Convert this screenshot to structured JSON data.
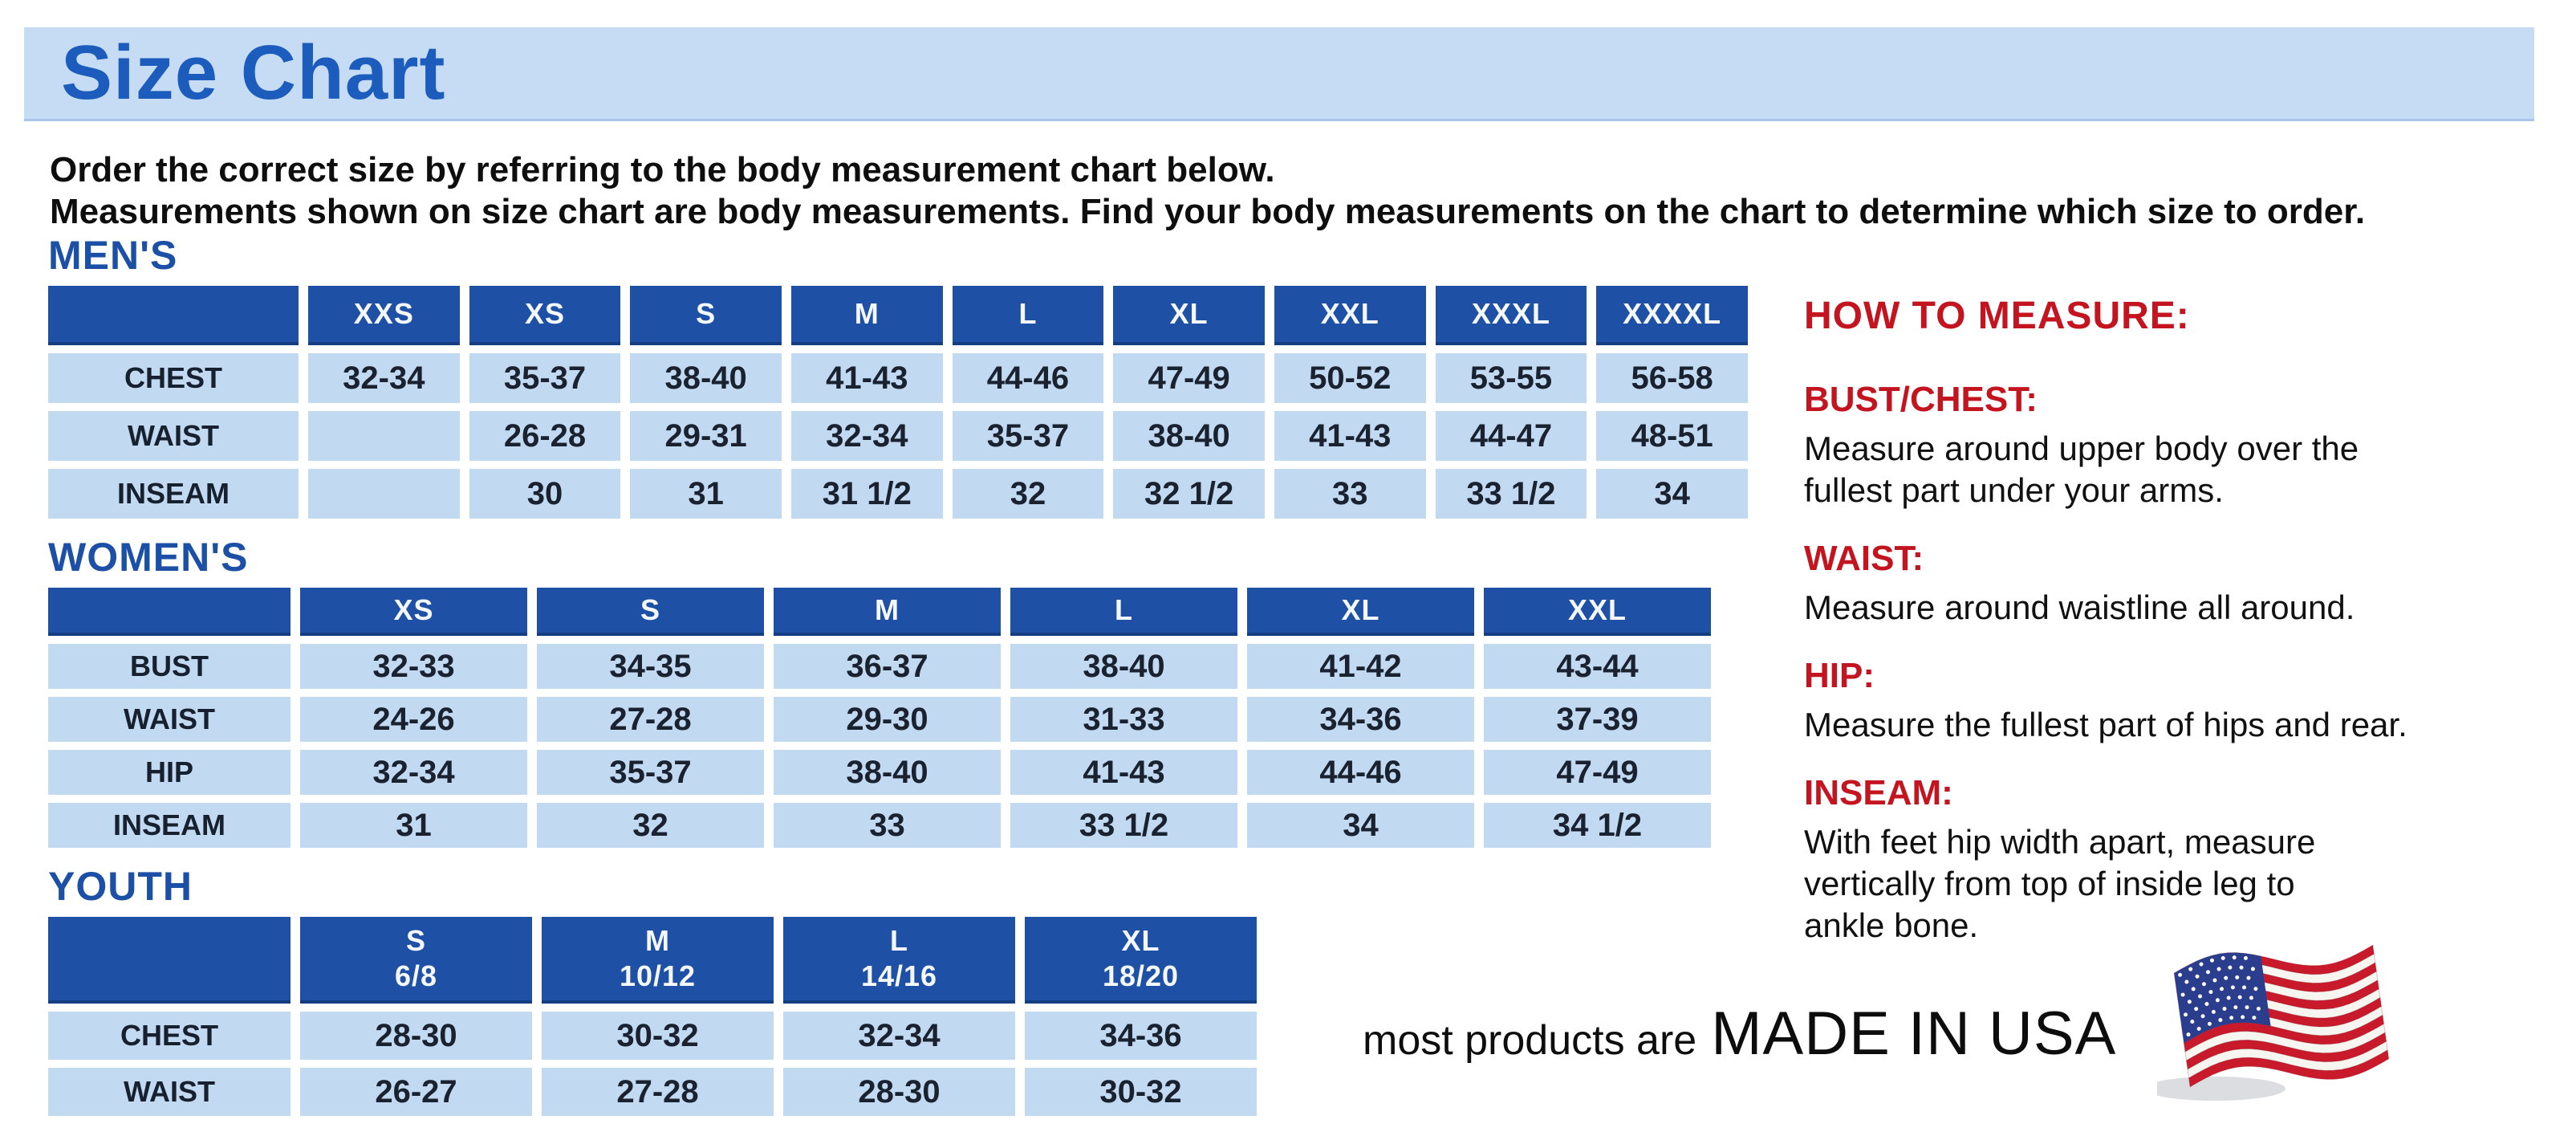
{
  "banner": {
    "title": "Size Chart"
  },
  "intro": {
    "line1": "Order the correct size by referring to the body measurement chart below.",
    "line2": "Measurements shown on size chart are body measurements.  Find your body measurements on the chart to determine which size to order."
  },
  "size_tables": [
    {
      "id": "mens",
      "heading": "MEN'S",
      "columns": [
        "XXS",
        "XS",
        "S",
        "M",
        "L",
        "XL",
        "XXL",
        "XXXL",
        "XXXXL"
      ],
      "rows": [
        {
          "label": "CHEST",
          "values": [
            "32-34",
            "35-37",
            "38-40",
            "41-43",
            "44-46",
            "47-49",
            "50-52",
            "53-55",
            "56-58"
          ]
        },
        {
          "label": "WAIST",
          "values": [
            "",
            "26-28",
            "29-31",
            "32-34",
            "35-37",
            "38-40",
            "41-43",
            "44-47",
            "48-51"
          ]
        },
        {
          "label": "INSEAM",
          "values": [
            "",
            "30",
            "31",
            "31 1/2",
            "32",
            "32 1/2",
            "33",
            "33 1/2",
            "34"
          ]
        }
      ]
    },
    {
      "id": "womens",
      "heading": "WOMEN'S",
      "columns": [
        "XS",
        "S",
        "M",
        "L",
        "XL",
        "XXL"
      ],
      "rows": [
        {
          "label": "BUST",
          "values": [
            "32-33",
            "34-35",
            "36-37",
            "38-40",
            "41-42",
            "43-44"
          ]
        },
        {
          "label": "WAIST",
          "values": [
            "24-26",
            "27-28",
            "29-30",
            "31-33",
            "34-36",
            "37-39"
          ]
        },
        {
          "label": "HIP",
          "values": [
            "32-34",
            "35-37",
            "38-40",
            "41-43",
            "44-46",
            "47-49"
          ]
        },
        {
          "label": "INSEAM",
          "values": [
            "31",
            "32",
            "33",
            "33 1/2",
            "34",
            "34 1/2"
          ]
        }
      ]
    },
    {
      "id": "youth",
      "heading": "YOUTH",
      "columns": [
        "S\n6/8",
        "M\n10/12",
        "L\n14/16",
        "XL\n18/20"
      ],
      "rows": [
        {
          "label": "CHEST",
          "values": [
            "28-30",
            "30-32",
            "32-34",
            "34-36"
          ]
        },
        {
          "label": "WAIST",
          "values": [
            "26-27",
            "27-28",
            "28-30",
            "30-32"
          ]
        }
      ]
    }
  ],
  "how_to_measure": {
    "heading": "HOW TO MEASURE:",
    "items": [
      {
        "label": "BUST/CHEST:",
        "text": "Measure around upper body over the\nfullest part under your arms."
      },
      {
        "label": "WAIST:",
        "text": "Measure around waistline all around."
      },
      {
        "label": "HIP:",
        "text": "Measure the fullest part of hips and rear."
      },
      {
        "label": "INSEAM:",
        "text": "With feet hip width apart, measure\nvertically from top of inside leg to\nankle bone."
      }
    ]
  },
  "footer": {
    "prefix": "most products are",
    "made_in": "MADE IN USA",
    "flag_icon": "us-flag-icon"
  },
  "colors": {
    "banner_bg": "#c6dbf4",
    "title_blue": "#1b5cbc",
    "heading_blue": "#1c4fa6",
    "table_header_bg": "#1e50a5",
    "table_cell_bg": "#c2d9f2",
    "accent_red": "#c3141f",
    "flag_red": "#c81a2b",
    "flag_blue": "#2b3e8e"
  }
}
